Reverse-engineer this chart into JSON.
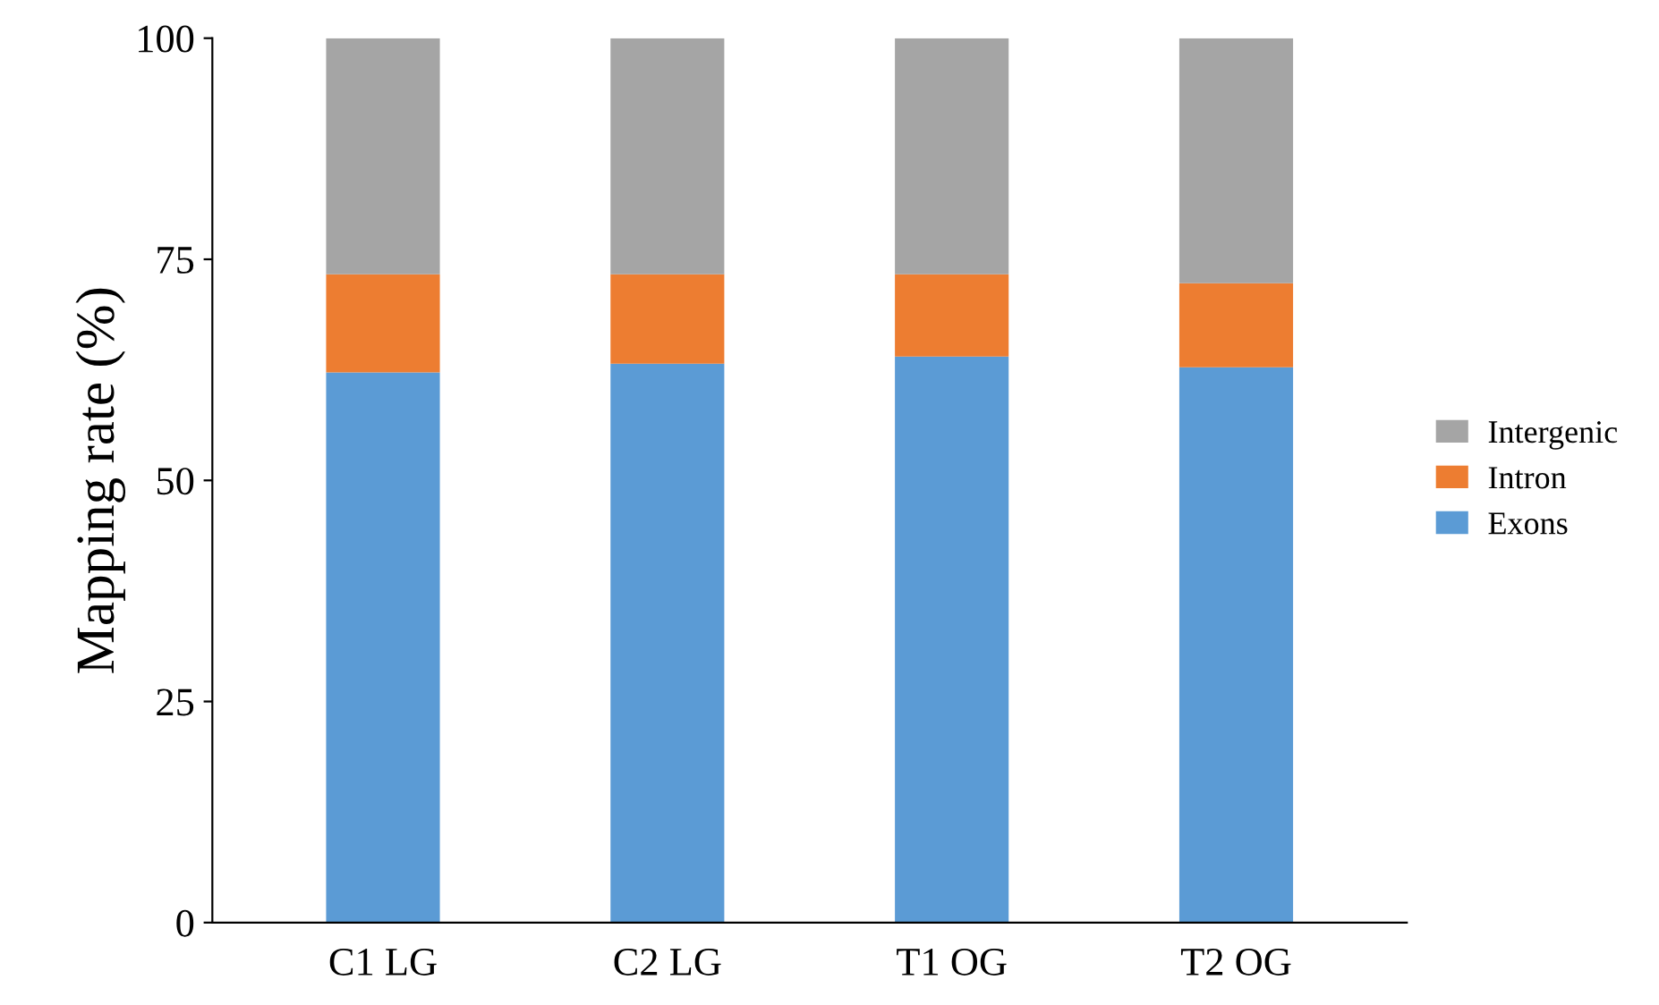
{
  "chart_data": {
    "type": "bar",
    "stacked": true,
    "ylabel": "Mapping rate (%)",
    "categories": [
      "C1 LG",
      "C2 LG",
      "T1 OG",
      "T2 OG"
    ],
    "series": [
      {
        "name": "Exons",
        "color": "#5b9bd5",
        "values": [
          62.2,
          63.2,
          64.0,
          62.8
        ]
      },
      {
        "name": "Intron",
        "color": "#ed7d31",
        "values": [
          11.1,
          10.1,
          9.3,
          9.5
        ]
      },
      {
        "name": "Intergenic",
        "color": "#a5a5a5",
        "values": [
          26.7,
          26.7,
          26.7,
          27.7
        ]
      }
    ],
    "ylim": [
      0,
      100
    ],
    "yticks": [
      0,
      25,
      50,
      75,
      100
    ],
    "grid": false,
    "legend": "right"
  }
}
